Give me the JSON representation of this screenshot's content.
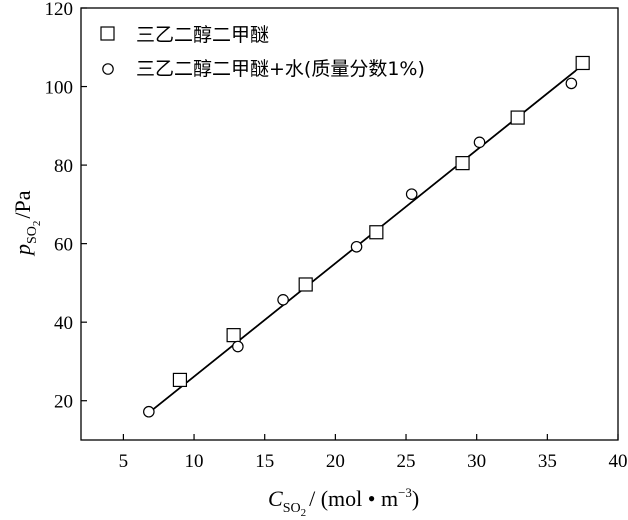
{
  "chart_data": {
    "type": "scatter",
    "xlabel": {
      "symbol": "C",
      "subscript": "SO",
      "sub_sub": "2",
      "unit": "/ (mol • m",
      "exp": "−3",
      "close": ")"
    },
    "ylabel": {
      "symbol": "p",
      "subscript": "SO",
      "sub_sub": "2",
      "unit": "/Pa"
    },
    "xlim": [
      2,
      40
    ],
    "ylim": [
      10,
      120
    ],
    "xticks": [
      5,
      10,
      15,
      20,
      25,
      30,
      35,
      40
    ],
    "yticks": [
      20,
      40,
      60,
      80,
      100,
      120
    ],
    "grid": false,
    "legend_position": "top-left",
    "series": [
      {
        "name": "三乙二醇二甲醚",
        "marker": "square",
        "x": [
          9.0,
          12.8,
          17.9,
          22.9,
          29.0,
          32.9,
          37.5
        ],
        "y": [
          25.3,
          36.7,
          49.6,
          62.9,
          80.5,
          92.1,
          106.0
        ],
        "fit": [
          [
            7.0,
            17.5
          ],
          [
            37.5,
            105.5
          ]
        ]
      },
      {
        "name": "三乙二醇二甲醚+水(质量分数1%)",
        "marker": "circle",
        "x": [
          6.8,
          13.1,
          16.3,
          21.5,
          25.4,
          30.2,
          36.7
        ],
        "y": [
          17.2,
          33.8,
          45.7,
          59.2,
          72.6,
          85.8,
          100.8
        ],
        "fit": [
          [
            7.0,
            17.5
          ],
          [
            37.0,
            104.0
          ]
        ]
      }
    ]
  }
}
